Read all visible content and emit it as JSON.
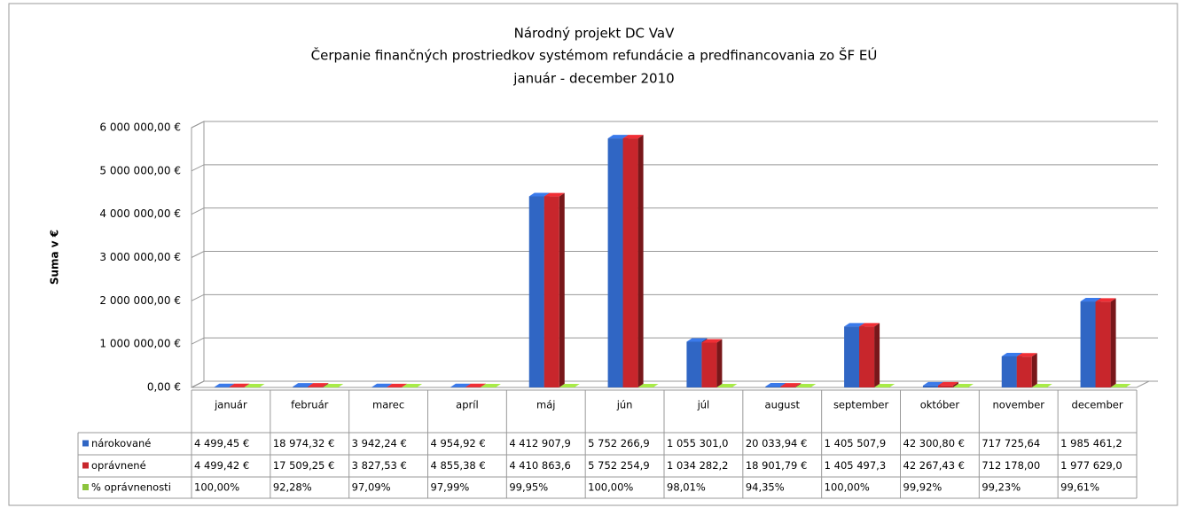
{
  "chart_data": {
    "type": "bar",
    "title": "Národný projekt DC VaV",
    "subtitle": "Čerpanie finančných prostriedkov systémom refundácie a predfinancovania zo ŠF EÚ",
    "period": "január - december 2010",
    "y_label": "Suma v €",
    "categories": [
      "január",
      "február",
      "marec",
      "apríl",
      "máj",
      "jún",
      "júl",
      "august",
      "september",
      "október",
      "november",
      "december"
    ],
    "series": [
      {
        "name": "nárokované",
        "color": "#3066c4",
        "values": [
          4499.45,
          18974.32,
          3942.24,
          4954.92,
          4412907.9,
          5752266.9,
          1055301.0,
          20033.94,
          1405507.9,
          42300.8,
          717725.64,
          1985461.2
        ],
        "value_labels": [
          "4 499,45 €",
          "18 974,32 €",
          "3 942,24 €",
          "4 954,92 €",
          "4 412 907,9",
          "5 752 266,9",
          "1 055 301,0",
          "20 033,94 €",
          "1 405 507,9",
          "42 300,80 €",
          "717 725,64",
          "1 985 461,2"
        ]
      },
      {
        "name": "oprávnené",
        "color": "#c8262c",
        "values": [
          4499.42,
          17509.25,
          3827.53,
          4855.38,
          4410863.6,
          5752254.9,
          1034282.2,
          18901.79,
          1405497.3,
          42267.43,
          712178.0,
          1977629.0
        ],
        "value_labels": [
          "4 499,42 €",
          "17 509,25 €",
          "3 827,53 €",
          "4 855,38 €",
          "4 410 863,6",
          "5 752 254,9",
          "1 034 282,2",
          "18 901,79 €",
          "1 405 497,3",
          "42 267,43 €",
          "712 178,00",
          "1 977 629,0"
        ]
      },
      {
        "name": "% oprávnenosti",
        "color": "#8cc43c",
        "values": [
          100.0,
          92.28,
          97.09,
          97.99,
          99.95,
          100.0,
          98.01,
          94.35,
          100.0,
          99.92,
          99.23,
          99.61
        ],
        "value_labels": [
          "100,00%",
          "92,28%",
          "97,09%",
          "97,99%",
          "99,95%",
          "100,00%",
          "98,01%",
          "94,35%",
          "100,00%",
          "99,92%",
          "99,23%",
          "99,61%"
        ]
      }
    ],
    "ylim": [
      0,
      6000000
    ],
    "yticks": [
      {
        "value": 0,
        "label": "0,00 €"
      },
      {
        "value": 1000000,
        "label": "1 000 000,00 €"
      },
      {
        "value": 2000000,
        "label": "2 000 000,00 €"
      },
      {
        "value": 3000000,
        "label": "3 000 000,00 €"
      },
      {
        "value": 4000000,
        "label": "4 000 000,00 €"
      },
      {
        "value": 5000000,
        "label": "5 000 000,00 €"
      },
      {
        "value": 6000000,
        "label": "6 000 000,00 €"
      }
    ],
    "grid": true
  }
}
